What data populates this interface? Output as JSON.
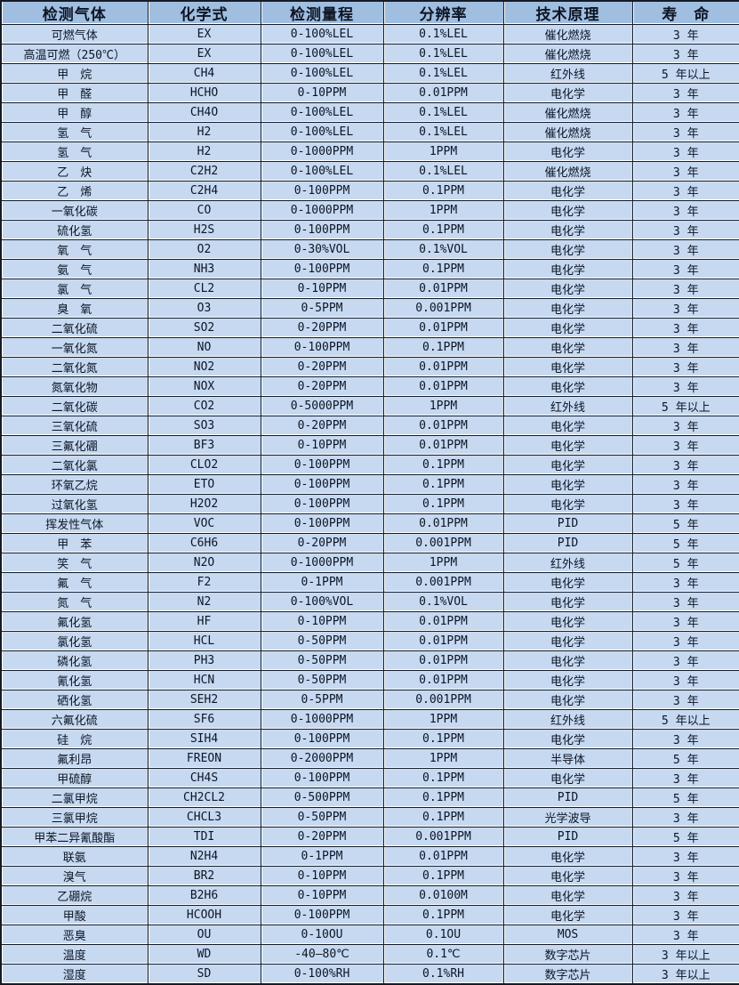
{
  "colors": {
    "header_bg": "#a0bee0",
    "row_bg": "#c6d9f1",
    "border": "#141b26",
    "gridline": "#ffffff",
    "text": "#0d1524"
  },
  "table": {
    "headers": [
      "检测气体",
      "化学式",
      "检测量程",
      "分辨率",
      "技术原理",
      "寿　命"
    ],
    "rows": [
      [
        "可燃气体",
        "EX",
        "0-100%LEL",
        "0.1%LEL",
        "催化燃烧",
        "3 年"
      ],
      [
        "高温可燃（250℃）",
        "EX",
        "0-100%LEL",
        "0.1%LEL",
        "催化燃烧",
        "3 年"
      ],
      [
        "甲　烷",
        "CH4",
        "0-100%LEL",
        "0.1%LEL",
        "红外线",
        "5 年以上"
      ],
      [
        "甲　醛",
        "HCHO",
        "0-10PPM",
        "0.01PPM",
        "电化学",
        "3 年"
      ],
      [
        "甲　醇",
        "CH4O",
        "0-100%LEL",
        "0.1%LEL",
        "催化燃烧",
        "3 年"
      ],
      [
        "氢　气",
        "H2",
        "0-100%LEL",
        "0.1%LEL",
        "催化燃烧",
        "3 年"
      ],
      [
        "氢　气",
        "H2",
        "0-1000PPM",
        "1PPM",
        "电化学",
        "3 年"
      ],
      [
        "乙　炔",
        "C2H2",
        "0-100%LEL",
        "0.1%LEL",
        "催化燃烧",
        "3 年"
      ],
      [
        "乙　烯",
        "C2H4",
        "0-100PPM",
        "0.1PPM",
        "电化学",
        "3 年"
      ],
      [
        "一氧化碳",
        "CO",
        "0-1000PPM",
        "1PPM",
        "电化学",
        "3 年"
      ],
      [
        "硫化氢",
        "H2S",
        "0-100PPM",
        "0.1PPM",
        "电化学",
        "3 年"
      ],
      [
        "氧　气",
        "O2",
        "0-30%VOL",
        "0.1%VOL",
        "电化学",
        "3 年"
      ],
      [
        "氨　气",
        "NH3",
        "0-100PPM",
        "0.1PPM",
        "电化学",
        "3 年"
      ],
      [
        "氯　气",
        "CL2",
        "0-10PPM",
        "0.01PPM",
        "电化学",
        "3 年"
      ],
      [
        "臭　氧",
        "O3",
        "0-5PPM",
        "0.001PPM",
        "电化学",
        "3 年"
      ],
      [
        "二氧化硫",
        "SO2",
        "0-20PPM",
        "0.01PPM",
        "电化学",
        "3 年"
      ],
      [
        "一氧化氮",
        "NO",
        "0-100PPM",
        "0.1PPM",
        "电化学",
        "3 年"
      ],
      [
        "二氧化氮",
        "NO2",
        "0-20PPM",
        "0.01PPM",
        "电化学",
        "3 年"
      ],
      [
        "氮氧化物",
        "NOX",
        "0-20PPM",
        "0.01PPM",
        "电化学",
        "3 年"
      ],
      [
        "二氧化碳",
        "CO2",
        "0-5000PPM",
        "1PPM",
        "红外线",
        "5 年以上"
      ],
      [
        "三氧化硫",
        "SO3",
        "0-20PPM",
        "0.01PPM",
        "电化学",
        "3 年"
      ],
      [
        "三氟化硼",
        "BF3",
        "0-10PPM",
        "0.01PPM",
        "电化学",
        "3 年"
      ],
      [
        "二氧化氯",
        "CLO2",
        "0-100PPM",
        "0.1PPM",
        "电化学",
        "3 年"
      ],
      [
        "环氧乙烷",
        "ETO",
        "0-100PPM",
        "0.1PPM",
        "电化学",
        "3 年"
      ],
      [
        "过氧化氢",
        "H2O2",
        "0-100PPM",
        "0.1PPM",
        "电化学",
        "3 年"
      ],
      [
        "挥发性气体",
        "VOC",
        "0-100PPM",
        "0.01PPM",
        "PID",
        "5 年"
      ],
      [
        "甲　苯",
        "C6H6",
        "0-20PPM",
        "0.001PPM",
        "PID",
        "5 年"
      ],
      [
        "笑　气",
        "N2O",
        "0-1000PPM",
        "1PPM",
        "红外线",
        "5 年"
      ],
      [
        "氟　气",
        "F2",
        "0-1PPM",
        "0.001PPM",
        "电化学",
        "3 年"
      ],
      [
        "氮　气",
        "N2",
        "0-100%VOL",
        "0.1%VOL",
        "电化学",
        "3 年"
      ],
      [
        "氟化氢",
        "HF",
        "0-10PPM",
        "0.01PPM",
        "电化学",
        "3 年"
      ],
      [
        "氯化氢",
        "HCL",
        "0-50PPM",
        "0.01PPM",
        "电化学",
        "3 年"
      ],
      [
        "磷化氢",
        "PH3",
        "0-50PPM",
        "0.01PPM",
        "电化学",
        "3 年"
      ],
      [
        "氰化氢",
        "HCN",
        "0-50PPM",
        "0.01PPM",
        "电化学",
        "3 年"
      ],
      [
        "硒化氢",
        "SEH2",
        "0-5PPM",
        "0.001PPM",
        "电化学",
        "3 年"
      ],
      [
        "六氟化硫",
        "SF6",
        "0-1000PPM",
        "1PPM",
        "红外线",
        "5 年以上"
      ],
      [
        "硅　烷",
        "SIH4",
        "0-100PPM",
        "0.1PPM",
        "电化学",
        "3 年"
      ],
      [
        "氟利昂",
        "FREON",
        "0-2000PPM",
        "1PPM",
        "半导体",
        "5 年"
      ],
      [
        "甲硫醇",
        "CH4S",
        "0-100PPM",
        "0.1PPM",
        "电化学",
        "3 年"
      ],
      [
        "二氯甲烷",
        "CH2CL2",
        "0-500PPM",
        "0.1PPM",
        "PID",
        "5 年"
      ],
      [
        "三氯甲烷",
        "CHCL3",
        "0-50PPM",
        "0.1PPM",
        "光学波导",
        "3 年"
      ],
      [
        "甲苯二异氰酸酯",
        "TDI",
        "0-20PPM",
        "0.001PPM",
        "PID",
        "5 年"
      ],
      [
        "联氨",
        "N2H4",
        "0-1PPM",
        "0.01PPM",
        "电化学",
        "3 年"
      ],
      [
        "溴气",
        "BR2",
        "0-10PPM",
        "0.1PPM",
        "电化学",
        "3 年"
      ],
      [
        "乙硼烷",
        "B2H6",
        "0-10PPM",
        "0.0100M",
        "电化学",
        "3 年"
      ],
      [
        "甲酸",
        "HCOOH",
        "0-100PPM",
        "0.1PPM",
        "电化学",
        "3 年"
      ],
      [
        "恶臭",
        "OU",
        "0-10OU",
        "0.1OU",
        "MOS",
        "3 年"
      ],
      [
        "温度",
        "WD",
        "-40—80℃",
        "0.1℃",
        "数字芯片",
        "3 年以上"
      ],
      [
        "湿度",
        "SD",
        "0-100%RH",
        "0.1%RH",
        "数字芯片",
        "3 年以上"
      ]
    ]
  }
}
